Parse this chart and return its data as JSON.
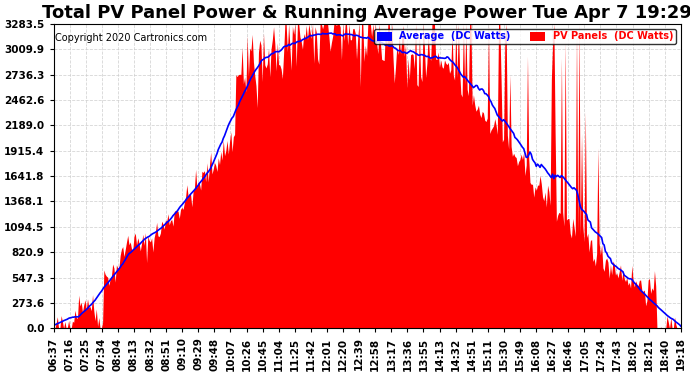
{
  "title": "Total PV Panel Power & Running Average Power Tue Apr 7 19:29",
  "copyright": "Copyright 2020 Cartronics.com",
  "legend_avg": "Average  (DC Watts)",
  "legend_pv": "PV Panels  (DC Watts)",
  "yticks": [
    0.0,
    273.6,
    547.3,
    820.9,
    1094.5,
    1368.1,
    1641.8,
    1915.4,
    2189.0,
    2462.6,
    2736.3,
    3009.9,
    3283.5
  ],
  "ymax": 3283.5,
  "ymin": 0.0,
  "num_points": 160,
  "pv_color": "#FF0000",
  "avg_color": "#0000FF",
  "bg_color": "#FFFFFF",
  "grid_color": "#CCCCCC",
  "title_fontsize": 13,
  "tick_fontsize": 7.5,
  "x_tick_labels": [
    "06:37",
    "07:16",
    "07:25",
    "07:34",
    "08:04",
    "08:13",
    "08:32",
    "08:51",
    "09:10",
    "09:29",
    "09:48",
    "10:07",
    "10:26",
    "10:45",
    "11:04",
    "11:25",
    "11:42",
    "12:01",
    "12:20",
    "12:39",
    "12:58",
    "13:17",
    "13:36",
    "13:55",
    "14:13",
    "14:32",
    "14:51",
    "15:11",
    "15:30",
    "15:49",
    "16:08",
    "16:27",
    "16:46",
    "17:05",
    "17:24",
    "17:43",
    "18:02",
    "18:21",
    "18:40",
    "19:18"
  ]
}
